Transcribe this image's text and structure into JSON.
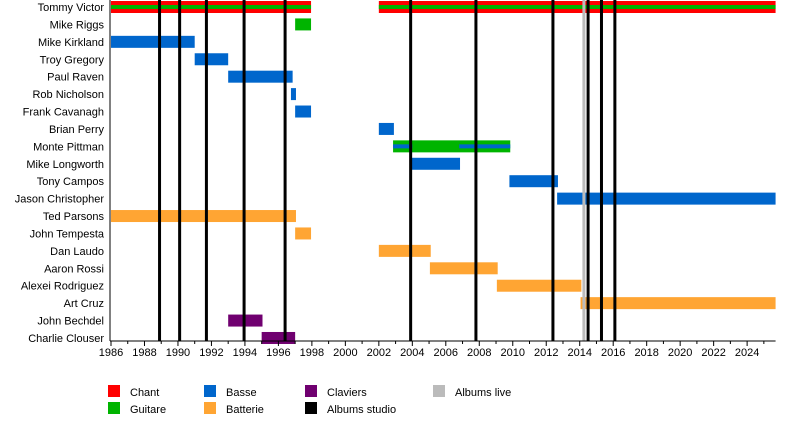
{
  "chart_data": {
    "type": "timeline",
    "xlim": [
      1986,
      2025.7
    ],
    "x_ticks": [
      1986,
      1988,
      1990,
      1992,
      1994,
      1996,
      1998,
      2000,
      2002,
      2004,
      2006,
      2008,
      2010,
      2012,
      2014,
      2016,
      2018,
      2020,
      2022,
      2024
    ],
    "colors": {
      "Chant": "#ff0000",
      "Guitare": "#00b400",
      "Basse": "#0066cc",
      "Batterie": "#ffa533",
      "Claviers": "#700070",
      "Albums studio": "#000000",
      "Albums live": "#bbbbbb"
    },
    "members": [
      {
        "name": "Tommy Victor",
        "periods": [
          {
            "role": "Chant",
            "start": 1986,
            "end": 1997.95,
            "secondary": "Guitare"
          },
          {
            "role": "Chant",
            "start": 2002,
            "end": 2025.7,
            "secondary": "Guitare"
          }
        ]
      },
      {
        "name": "Mike Riggs",
        "periods": [
          {
            "role": "Guitare",
            "start": 1997,
            "end": 1997.95
          }
        ]
      },
      {
        "name": "Mike Kirkland",
        "periods": [
          {
            "role": "Basse",
            "start": 1986,
            "end": 1991
          }
        ]
      },
      {
        "name": "Troy Gregory",
        "periods": [
          {
            "role": "Basse",
            "start": 1991,
            "end": 1993
          }
        ]
      },
      {
        "name": "Paul Raven",
        "periods": [
          {
            "role": "Basse",
            "start": 1993,
            "end": 1996.85
          }
        ]
      },
      {
        "name": "Rob Nicholson",
        "periods": [
          {
            "role": "Basse",
            "start": 1996.75,
            "end": 1997.05
          }
        ]
      },
      {
        "name": "Frank Cavanagh",
        "periods": [
          {
            "role": "Basse",
            "start": 1997,
            "end": 1997.95
          }
        ]
      },
      {
        "name": "Brian Perry",
        "periods": [
          {
            "role": "Basse",
            "start": 2002,
            "end": 2002.9
          }
        ]
      },
      {
        "name": "Monte Pittman",
        "periods": [
          {
            "role": "Guitare",
            "start": 2002.85,
            "end": 2009.85
          },
          {
            "role": "Basse",
            "start": 2002.85,
            "end": 2004,
            "stripe": true
          },
          {
            "role": "Basse",
            "start": 2006.8,
            "end": 2009.85,
            "stripe": true
          }
        ]
      },
      {
        "name": "Mike Longworth",
        "periods": [
          {
            "role": "Basse",
            "start": 2003.9,
            "end": 2006.85
          }
        ]
      },
      {
        "name": "Tony Campos",
        "periods": [
          {
            "role": "Basse",
            "start": 2009.8,
            "end": 2012.7
          }
        ]
      },
      {
        "name": "Jason Christopher",
        "periods": [
          {
            "role": "Basse",
            "start": 2012.65,
            "end": 2025.7
          }
        ]
      },
      {
        "name": "Ted Parsons",
        "periods": [
          {
            "role": "Batterie",
            "start": 1986,
            "end": 1997.05
          }
        ]
      },
      {
        "name": "John Tempesta",
        "periods": [
          {
            "role": "Batterie",
            "start": 1997,
            "end": 1997.95
          }
        ]
      },
      {
        "name": "Dan Laudo",
        "periods": [
          {
            "role": "Batterie",
            "start": 2002,
            "end": 2005.1
          }
        ]
      },
      {
        "name": "Aaron Rossi",
        "periods": [
          {
            "role": "Batterie",
            "start": 2005.05,
            "end": 2009.1
          }
        ]
      },
      {
        "name": "Alexei Rodriguez",
        "periods": [
          {
            "role": "Batterie",
            "start": 2009.05,
            "end": 2014.1
          }
        ]
      },
      {
        "name": "Art Cruz",
        "periods": [
          {
            "role": "Batterie",
            "start": 2014.05,
            "end": 2025.7
          }
        ]
      },
      {
        "name": "John Bechdel",
        "periods": [
          {
            "role": "Claviers",
            "start": 1993,
            "end": 1995.05
          }
        ]
      },
      {
        "name": "Charlie Clouser",
        "periods": [
          {
            "role": "Claviers",
            "start": 1995,
            "end": 1997
          }
        ]
      }
    ],
    "studio_albums": [
      1988.9,
      1990.1,
      1991.7,
      1993.95,
      1996.4,
      2003.9,
      2007.8,
      2012.4,
      2014.5,
      2015.3,
      2016.1
    ],
    "live_albums": [
      2014.25
    ],
    "legend": [
      "Chant",
      "Guitare",
      "Basse",
      "Batterie",
      "Claviers",
      "Albums studio",
      "Albums live"
    ],
    "legend_position": "bottom-left",
    "grid": false
  }
}
